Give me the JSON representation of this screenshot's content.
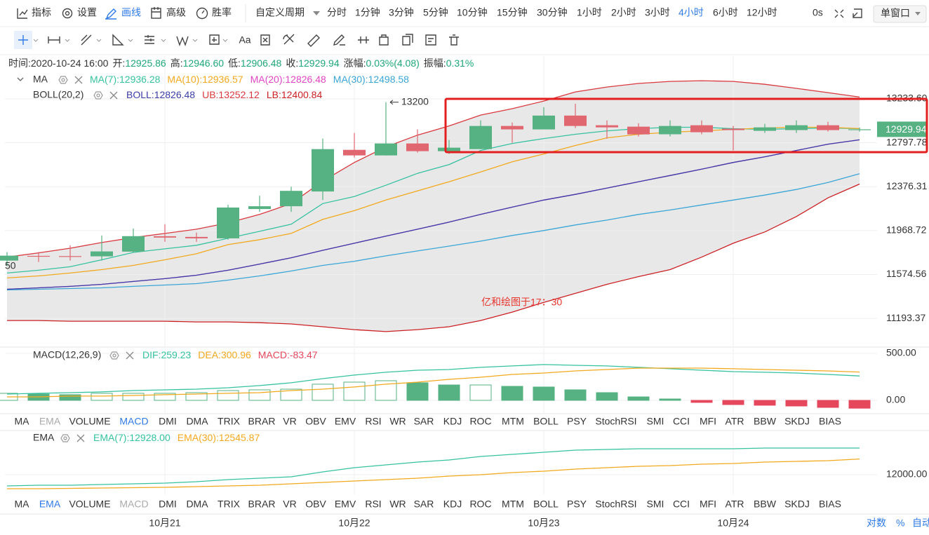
{
  "toolbar": {
    "items": [
      "指标",
      "设置",
      "画线",
      "高级",
      "胜率"
    ],
    "active_item": "画线",
    "custom_period": "自定义周期",
    "periods": [
      "分时",
      "1分钟",
      "3分钟",
      "5分钟",
      "10分钟",
      "15分钟",
      "30分钟",
      "1小时",
      "2小时",
      "3小时",
      "4小时",
      "6小时",
      "12小时"
    ],
    "active_period": "4小时",
    "countdown": "0s",
    "window": "单窗口"
  },
  "drawing_tools": {
    "text_tool": "Aa"
  },
  "info_bar": {
    "fields": [
      {
        "label": "时间:",
        "value": "2020-10-24 16:00"
      },
      {
        "label": "开:",
        "value": "12925.86"
      },
      {
        "label": "高:",
        "value": "12946.60"
      },
      {
        "label": "低:",
        "value": "12906.48"
      },
      {
        "label": "收:",
        "value": "12929.94"
      },
      {
        "label": "涨幅:",
        "value": "0.03%(4.08)"
      },
      {
        "label": "振幅:",
        "value": "0.31%"
      }
    ]
  },
  "chart_data": [
    {
      "type": "candlestick",
      "categories": [
        null,
        null,
        null,
        null,
        null,
        "10月21",
        null,
        null,
        null,
        null,
        null,
        "10月22",
        null,
        null,
        null,
        null,
        null,
        "10月23",
        null,
        null,
        null,
        null,
        null,
        "10月24",
        null,
        null,
        null,
        null
      ],
      "open": [
        11698,
        11740,
        11738,
        11736,
        11778,
        11917,
        11911,
        11898,
        12167,
        12193,
        12331,
        12729,
        12675,
        12791,
        12716,
        12736,
        12963,
        12929,
        13066,
        12970,
        12956,
        12881,
        12970,
        12936,
        12915,
        12922,
        12970,
        12925.86
      ],
      "high": [
        11774,
        11774,
        11835,
        11924,
        11988,
        12027,
        11950,
        12206,
        12291,
        12376,
        12839,
        12894,
        13200,
        12929,
        12825,
        13018,
        12997,
        13150,
        13184,
        13018,
        12990,
        13018,
        13018,
        12963,
        12984,
        13018,
        13004,
        12946.6
      ],
      "low": [
        11648,
        11685,
        11698,
        11698,
        11771,
        11867,
        11867,
        11886,
        12141,
        12141,
        12251,
        12654,
        12674,
        12702,
        12689,
        12736,
        12798,
        12929,
        12942,
        12839,
        12860,
        12860,
        12881,
        12723,
        12894,
        12894,
        12908,
        12906.48
      ],
      "close": [
        11742,
        11735,
        11733,
        11780,
        11918,
        11905,
        11898,
        12181,
        12193,
        12337,
        12736,
        12675,
        12791,
        12716,
        12750,
        12963,
        12929,
        13066,
        12963,
        12949,
        12880,
        12963,
        12901,
        12922,
        12949,
        12970,
        12922,
        12929.94
      ],
      "up_color": "#56b283",
      "down_color": "#e06670",
      "log_scale": true,
      "ylim": [
        10951,
        13527
      ],
      "yticks": [
        {
          "value": 13233.6,
          "label": "13233.60"
        },
        12797.78,
        12376.31,
        11968.72,
        11574.56,
        11193.37
      ],
      "grid": true,
      "last_price": 12929.94,
      "max_label": 13200,
      "left_edge_label": "50",
      "overlays": [
        {
          "title": "MA",
          "series": [
            {
              "name": "MA(7):12936.28",
              "color": "#35c2a0",
              "values": [
                11587,
                11612,
                11643,
                11705,
                11771,
                11803,
                11835,
                11898,
                11962,
                12027,
                12218,
                12284,
                12390,
                12503,
                12587,
                12723,
                12791,
                12839,
                12881,
                12915,
                12936,
                12950,
                12950,
                12936,
                12929,
                12936,
                12943,
                12936.28
              ]
            },
            {
              "name": "MA(10):12936.57",
              "color": "#f2a91e",
              "values": [
                11544,
                11562,
                11587,
                11618,
                11655,
                11705,
                11759,
                11841,
                11886,
                11943,
                12071,
                12152,
                12251,
                12337,
                12423,
                12516,
                12614,
                12689,
                12771,
                12846,
                12881,
                12901,
                12915,
                12929,
                12943,
                12950,
                12950,
                12936.57
              ]
            },
            {
              "name": "MA(20):12826.48",
              "color": "#e044c4",
              "values": [
                11445,
                11457,
                11470,
                11488,
                11513,
                11538,
                11568,
                11612,
                11667,
                11723,
                11790,
                11854,
                11918,
                11981,
                12046,
                12117,
                12185,
                12251,
                12304,
                12363,
                12423,
                12482,
                12543,
                12607,
                12662,
                12723,
                12784,
                12826.48
              ]
            },
            {
              "name": "MA(30):12498.58",
              "color": "#3aa6d6",
              "values": [
                11439,
                11445,
                11451,
                11457,
                11470,
                11482,
                11494,
                11525,
                11562,
                11605,
                11655,
                11692,
                11740,
                11784,
                11828,
                11873,
                11924,
                11969,
                12020,
                12065,
                12117,
                12158,
                12205,
                12251,
                12297,
                12350,
                12416,
                12498.58
              ]
            }
          ]
        },
        {
          "title": "BOLL(20,2)",
          "band_color": "#e8e8e8",
          "series": [
            {
              "name": "BOLL:12826.48",
              "color": "#3b3da6",
              "values": [
                11445,
                11457,
                11470,
                11488,
                11513,
                11538,
                11568,
                11612,
                11667,
                11723,
                11790,
                11854,
                11918,
                11981,
                12046,
                12117,
                12185,
                12251,
                12304,
                12363,
                12423,
                12482,
                12543,
                12607,
                12662,
                12723,
                12784,
                12826.48
              ]
            },
            {
              "name": "UB:13252.12",
              "color": "#d9393f",
              "values": [
                11729,
                11767,
                11809,
                11860,
                11905,
                11943,
                11981,
                12039,
                12117,
                12218,
                12429,
                12607,
                12757,
                12873,
                12963,
                13071,
                13135,
                13212,
                13304,
                13354,
                13390,
                13411,
                13418,
                13411,
                13382,
                13340,
                13297,
                13252.12
              ]
            },
            {
              "name": "LB:12400.84",
              "color": "#cc1f24",
              "values": [
                11175,
                11175,
                11169,
                11169,
                11169,
                11169,
                11163,
                11163,
                11157,
                11146,
                11122,
                11098,
                11081,
                11098,
                11122,
                11175,
                11247,
                11331,
                11409,
                11488,
                11556,
                11618,
                11729,
                11854,
                11956,
                12098,
                12271,
                12400.84
              ]
            }
          ]
        }
      ]
    },
    {
      "type": "macd",
      "title": "MACD(12,26,9)",
      "ylim": [
        -142,
        552
      ],
      "yticks": [
        {
          "value": 500,
          "label": "500.00"
        },
        {
          "value": 0,
          "label": "0.00"
        }
      ],
      "series": [
        {
          "name": "DIF:259.23",
          "color": "#35c2a0",
          "values": [
            67,
            75,
            82,
            90,
            104,
            112,
            119,
            134,
            157,
            187,
            231,
            269,
            299,
            321,
            328,
            351,
            366,
            381,
            373,
            366,
            351,
            336,
            321,
            306,
            299,
            291,
            276,
            259.23
          ]
        },
        {
          "name": "DEA:300.96",
          "color": "#f2a91e",
          "values": [
            37,
            37,
            45,
            45,
            52,
            60,
            67,
            75,
            82,
            104,
            119,
            142,
            172,
            194,
            224,
            246,
            276,
            291,
            313,
            328,
            343,
            343,
            343,
            336,
            328,
            321,
            313,
            300.96
          ]
        },
        {
          "name": "MACD:-83.47",
          "color": "#e5475c",
          "kind": "histogram",
          "up_color": "#56b283",
          "down_color": "#e5475c",
          "values": [
            75,
            67,
            60,
            75,
            75,
            75,
            82,
            104,
            112,
            119,
            172,
            194,
            209,
            187,
            164,
            164,
            149,
            142,
            112,
            82,
            37,
            15,
            -22,
            -45,
            -52,
            -60,
            -75,
            -83.47
          ]
        }
      ]
    },
    {
      "type": "line",
      "title": "EMA",
      "ylim": [
        11317,
        13513
      ],
      "yticks": [
        {
          "value": 12000,
          "label": "12000.00"
        }
      ],
      "series": [
        {
          "name": "EMA(7):12928.00",
          "color": "#35c2a0",
          "values": [
            11610,
            11634,
            11634,
            11658,
            11683,
            11707,
            11756,
            11829,
            11878,
            11927,
            12098,
            12244,
            12342,
            12439,
            12512,
            12634,
            12708,
            12781,
            12854,
            12878,
            12903,
            12903,
            12903,
            12903,
            12927,
            12927,
            12927,
            12928
          ]
        },
        {
          "name": "EMA(30):12545.87",
          "color": "#f2a91e",
          "values": [
            11512,
            11512,
            11524,
            11536,
            11549,
            11561,
            11585,
            11610,
            11634,
            11683,
            11732,
            11780,
            11829,
            11878,
            11951,
            12000,
            12073,
            12122,
            12195,
            12244,
            12293,
            12317,
            12366,
            12390,
            12439,
            12464,
            12488,
            12545.87
          ]
        }
      ]
    }
  ],
  "indicator_tabs": [
    {
      "tabs": [
        "MA",
        "EMA",
        "VOLUME",
        "MACD",
        "DMI",
        "DMA",
        "TRIX",
        "BRAR",
        "VR",
        "OBV",
        "EMV",
        "RSI",
        "WR",
        "SAR",
        "KDJ",
        "ROC",
        "MTM",
        "BOLL",
        "PSY",
        "StochRSI",
        "SMI",
        "CCI",
        "MFI",
        "ATR",
        "BBW",
        "SKDJ",
        "BIAS"
      ],
      "active": "MACD",
      "muted": "EMA"
    },
    {
      "tabs": [
        "MA",
        "EMA",
        "VOLUME",
        "MACD",
        "DMI",
        "DMA",
        "TRIX",
        "BRAR",
        "VR",
        "OBV",
        "EMV",
        "RSI",
        "WR",
        "SAR",
        "KDJ",
        "ROC",
        "MTM",
        "BOLL",
        "PSY",
        "StochRSI",
        "SMI",
        "CCI",
        "MFI",
        "ATR",
        "BBW",
        "SKDJ",
        "BIAS"
      ],
      "active": "EMA",
      "muted": "MACD"
    }
  ],
  "annotation": "亿和绘图于17：30",
  "axis_controls": [
    "对数",
    "%",
    "自动"
  ]
}
